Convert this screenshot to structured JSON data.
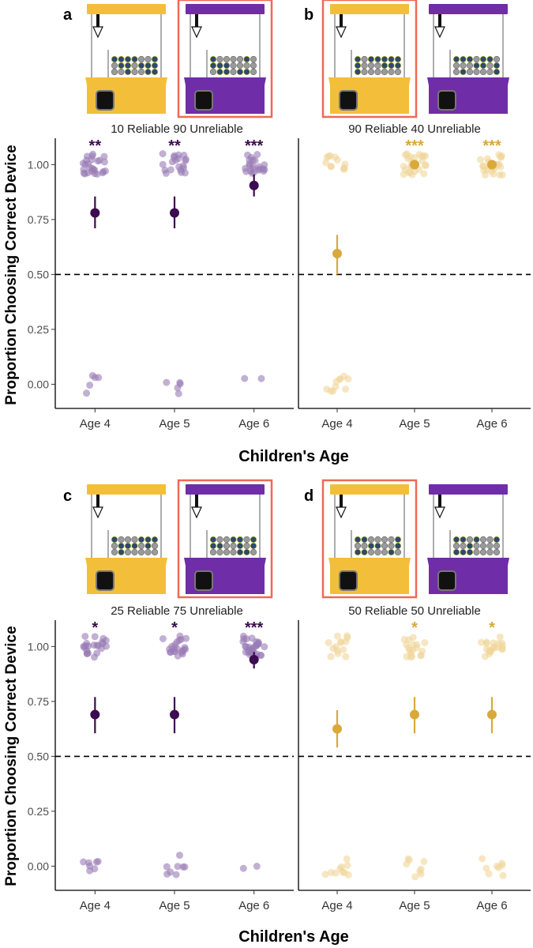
{
  "figure": {
    "y_axis_label": "Proportion Choosing Correct Device",
    "x_axis_label": "Children's Age"
  },
  "colors": {
    "purple": "#6f2da8",
    "purple_dark": "#3d0b4f",
    "purple_point": "#9a7bb5",
    "gold": "#f3bf3b",
    "gold_dark": "#d9a93b",
    "gold_point": "#f0d599",
    "highlight": "#ee6a55",
    "axis": "#000000",
    "gray": "#555555"
  },
  "chart_data": [
    {
      "type": "scatter",
      "panel": "a",
      "title": "10 Reliable 90 Unreliable",
      "highlight_machine": "purple",
      "machine_icons": [
        "gold-machine",
        "purple-machine"
      ],
      "series_color": "purple",
      "categories": [
        "Age 4",
        "Age 5",
        "Age 6"
      ],
      "significance": [
        "**",
        "**",
        "***"
      ],
      "means": [
        0.78,
        0.78,
        0.905
      ],
      "ci": [
        [
          0.71,
          0.855
        ],
        [
          0.71,
          0.855
        ],
        [
          0.855,
          0.955
        ]
      ],
      "points_high": [
        [
          0.95,
          1.05,
          26
        ],
        [
          0.95,
          1.05,
          20
        ],
        [
          0.95,
          1.05,
          22
        ]
      ],
      "points_low": [
        [
          -0.05,
          0.04,
          5
        ],
        [
          -0.05,
          0.05,
          5
        ],
        [
          -0.02,
          0.04,
          2
        ]
      ],
      "ylim": [
        -0.11,
        1.12
      ],
      "yticks": [
        0.0,
        0.25,
        0.5,
        0.75,
        1.0
      ],
      "ytick_labels": [
        "0.00",
        "0.25",
        "0.50",
        "0.75",
        "1.00"
      ],
      "reference_line": 0.5
    },
    {
      "type": "scatter",
      "panel": "b",
      "title": "90 Reliable 40 Unreliable",
      "highlight_machine": "gold",
      "machine_icons": [
        "gold-machine",
        "purple-machine"
      ],
      "series_color": "gold",
      "categories": [
        "Age 4",
        "Age 5",
        "Age 6"
      ],
      "significance": [
        "",
        "***",
        "***"
      ],
      "means": [
        0.595,
        1.0,
        1.0
      ],
      "ci": [
        [
          0.5,
          0.68
        ],
        [
          1.0,
          1.0
        ],
        [
          1.0,
          1.0
        ]
      ],
      "points_high": [
        [
          0.95,
          1.05,
          12
        ],
        [
          0.95,
          1.05,
          26
        ],
        [
          0.95,
          1.05,
          24
        ]
      ],
      "points_low": [
        [
          -0.05,
          0.04,
          10
        ],
        [
          0,
          0,
          0
        ],
        [
          0,
          0,
          0
        ]
      ],
      "ylim": [
        -0.11,
        1.12
      ],
      "yticks": [
        0.0,
        0.25,
        0.5,
        0.75,
        1.0
      ],
      "ytick_labels": [
        "0.00",
        "0.25",
        "0.50",
        "0.75",
        "1.00"
      ],
      "reference_line": 0.5
    },
    {
      "type": "scatter",
      "panel": "c",
      "title": "25 Reliable 75 Unreliable",
      "highlight_machine": "purple",
      "machine_icons": [
        "gold-machine",
        "purple-machine"
      ],
      "series_color": "purple",
      "categories": [
        "Age 4",
        "Age 5",
        "Age 6"
      ],
      "significance": [
        "*",
        "*",
        "***"
      ],
      "means": [
        0.69,
        0.69,
        0.94
      ],
      "ci": [
        [
          0.605,
          0.77
        ],
        [
          0.605,
          0.77
        ],
        [
          0.9,
          0.975
        ]
      ],
      "points_high": [
        [
          0.95,
          1.05,
          22
        ],
        [
          0.95,
          1.05,
          22
        ],
        [
          0.95,
          1.05,
          30
        ]
      ],
      "points_low": [
        [
          -0.05,
          0.04,
          7
        ],
        [
          -0.05,
          0.05,
          8
        ],
        [
          -0.02,
          0.02,
          2
        ]
      ],
      "ylim": [
        -0.11,
        1.12
      ],
      "yticks": [
        0.0,
        0.25,
        0.5,
        0.75,
        1.0
      ],
      "ytick_labels": [
        "0.00",
        "0.25",
        "0.50",
        "0.75",
        "1.00"
      ],
      "reference_line": 0.5
    },
    {
      "type": "scatter",
      "panel": "d",
      "title": "50 Reliable 50 Unreliable",
      "highlight_machine": "gold",
      "machine_icons": [
        "gold-machine",
        "purple-machine"
      ],
      "series_color": "gold",
      "categories": [
        "Age 4",
        "Age 5",
        "Age 6"
      ],
      "significance": [
        "",
        "*",
        "*"
      ],
      "means": [
        0.625,
        0.69,
        0.69
      ],
      "ci": [
        [
          0.54,
          0.71
        ],
        [
          0.605,
          0.77
        ],
        [
          0.605,
          0.77
        ]
      ],
      "points_high": [
        [
          0.95,
          1.05,
          14
        ],
        [
          0.95,
          1.05,
          18
        ],
        [
          0.95,
          1.05,
          20
        ]
      ],
      "points_low": [
        [
          -0.05,
          0.04,
          10
        ],
        [
          -0.05,
          0.04,
          8
        ],
        [
          -0.05,
          0.04,
          8
        ]
      ],
      "ylim": [
        -0.11,
        1.12
      ],
      "yticks": [
        0.0,
        0.25,
        0.5,
        0.75,
        1.0
      ],
      "ytick_labels": [
        "0.00",
        "0.25",
        "0.50",
        "0.75",
        "1.00"
      ],
      "reference_line": 0.5
    }
  ]
}
